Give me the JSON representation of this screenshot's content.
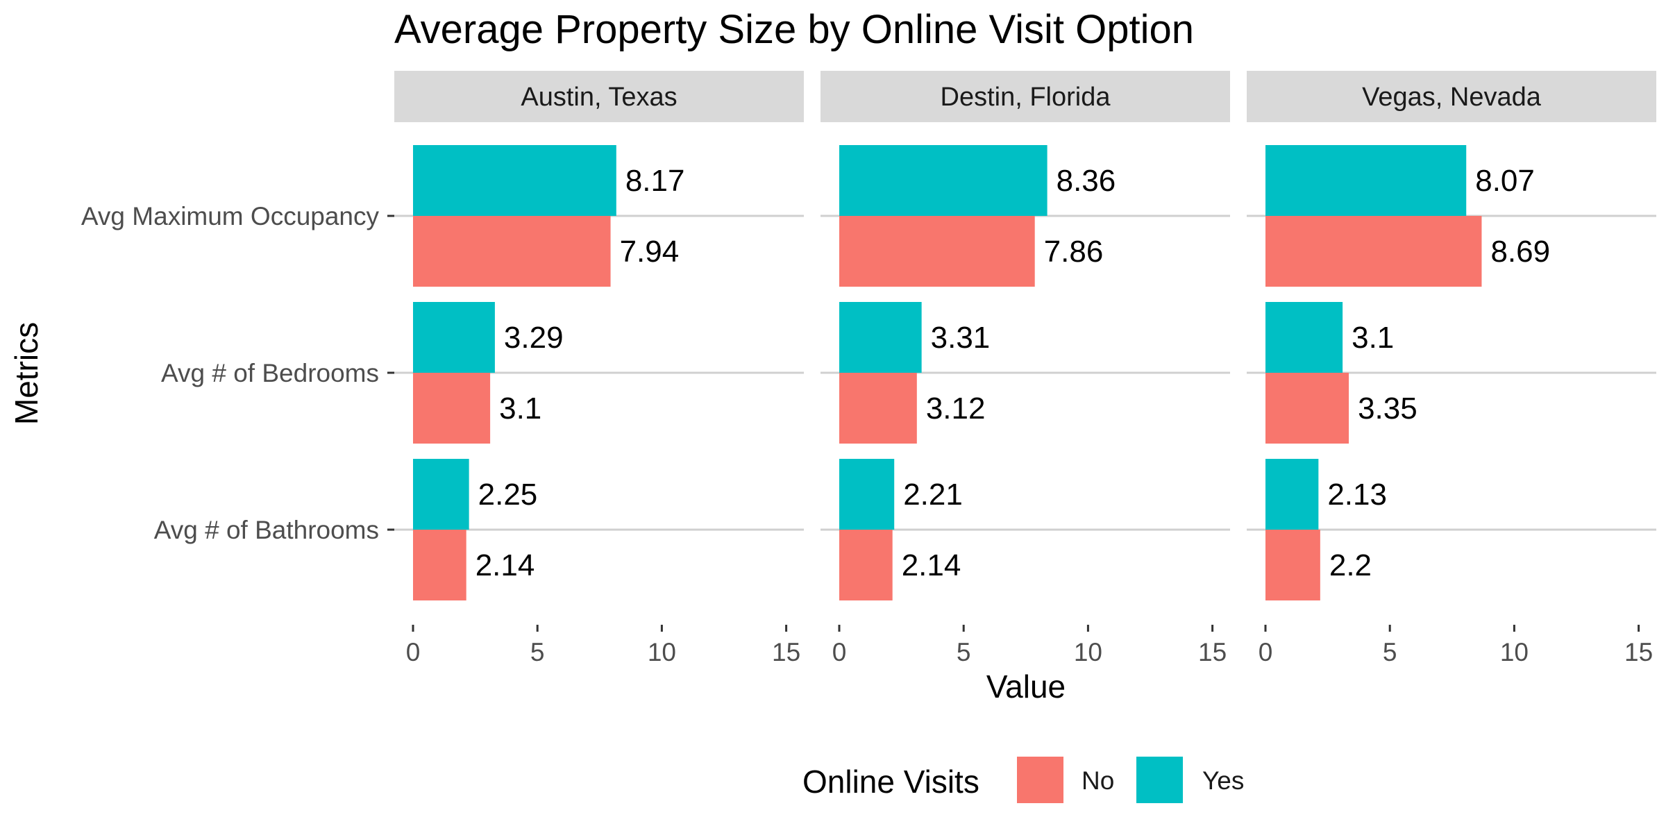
{
  "chart_data": {
    "type": "bar",
    "orientation": "horizontal",
    "title": "Average Property Size by Online Visit Option",
    "xlabel": "Value",
    "ylabel": "Metrics",
    "xlim": [
      0,
      15
    ],
    "xticks": [
      0,
      5,
      10,
      15
    ],
    "categories": [
      "Avg Maximum Occupancy",
      "Avg # of Bedrooms",
      "Avg # of Bathrooms"
    ],
    "legend": {
      "title": "Online Visits",
      "position": "bottom",
      "entries": [
        {
          "name": "No",
          "color": "#F8766D"
        },
        {
          "name": "Yes",
          "color": "#00BFC4"
        }
      ]
    },
    "grid": true,
    "facets": [
      {
        "label": "Austin, Texas",
        "series": [
          {
            "name": "Yes",
            "values": [
              8.17,
              3.29,
              2.25
            ],
            "labels": [
              "8.17",
              "3.29",
              "2.25"
            ]
          },
          {
            "name": "No",
            "values": [
              7.94,
              3.1,
              2.14
            ],
            "labels": [
              "7.94",
              "3.1",
              "2.14"
            ]
          }
        ]
      },
      {
        "label": "Destin, Florida",
        "series": [
          {
            "name": "Yes",
            "values": [
              8.36,
              3.31,
              2.21
            ],
            "labels": [
              "8.36",
              "3.31",
              "2.21"
            ]
          },
          {
            "name": "No",
            "values": [
              7.86,
              3.12,
              2.14
            ],
            "labels": [
              "7.86",
              "3.12",
              "2.14"
            ]
          }
        ]
      },
      {
        "label": "Vegas, Nevada",
        "series": [
          {
            "name": "Yes",
            "values": [
              8.07,
              3.1,
              2.13
            ],
            "labels": [
              "8.07",
              "3.1",
              "2.13"
            ]
          },
          {
            "name": "No",
            "values": [
              8.69,
              3.35,
              2.2
            ],
            "labels": [
              "8.69",
              "3.35",
              "2.2"
            ]
          }
        ]
      }
    ]
  }
}
